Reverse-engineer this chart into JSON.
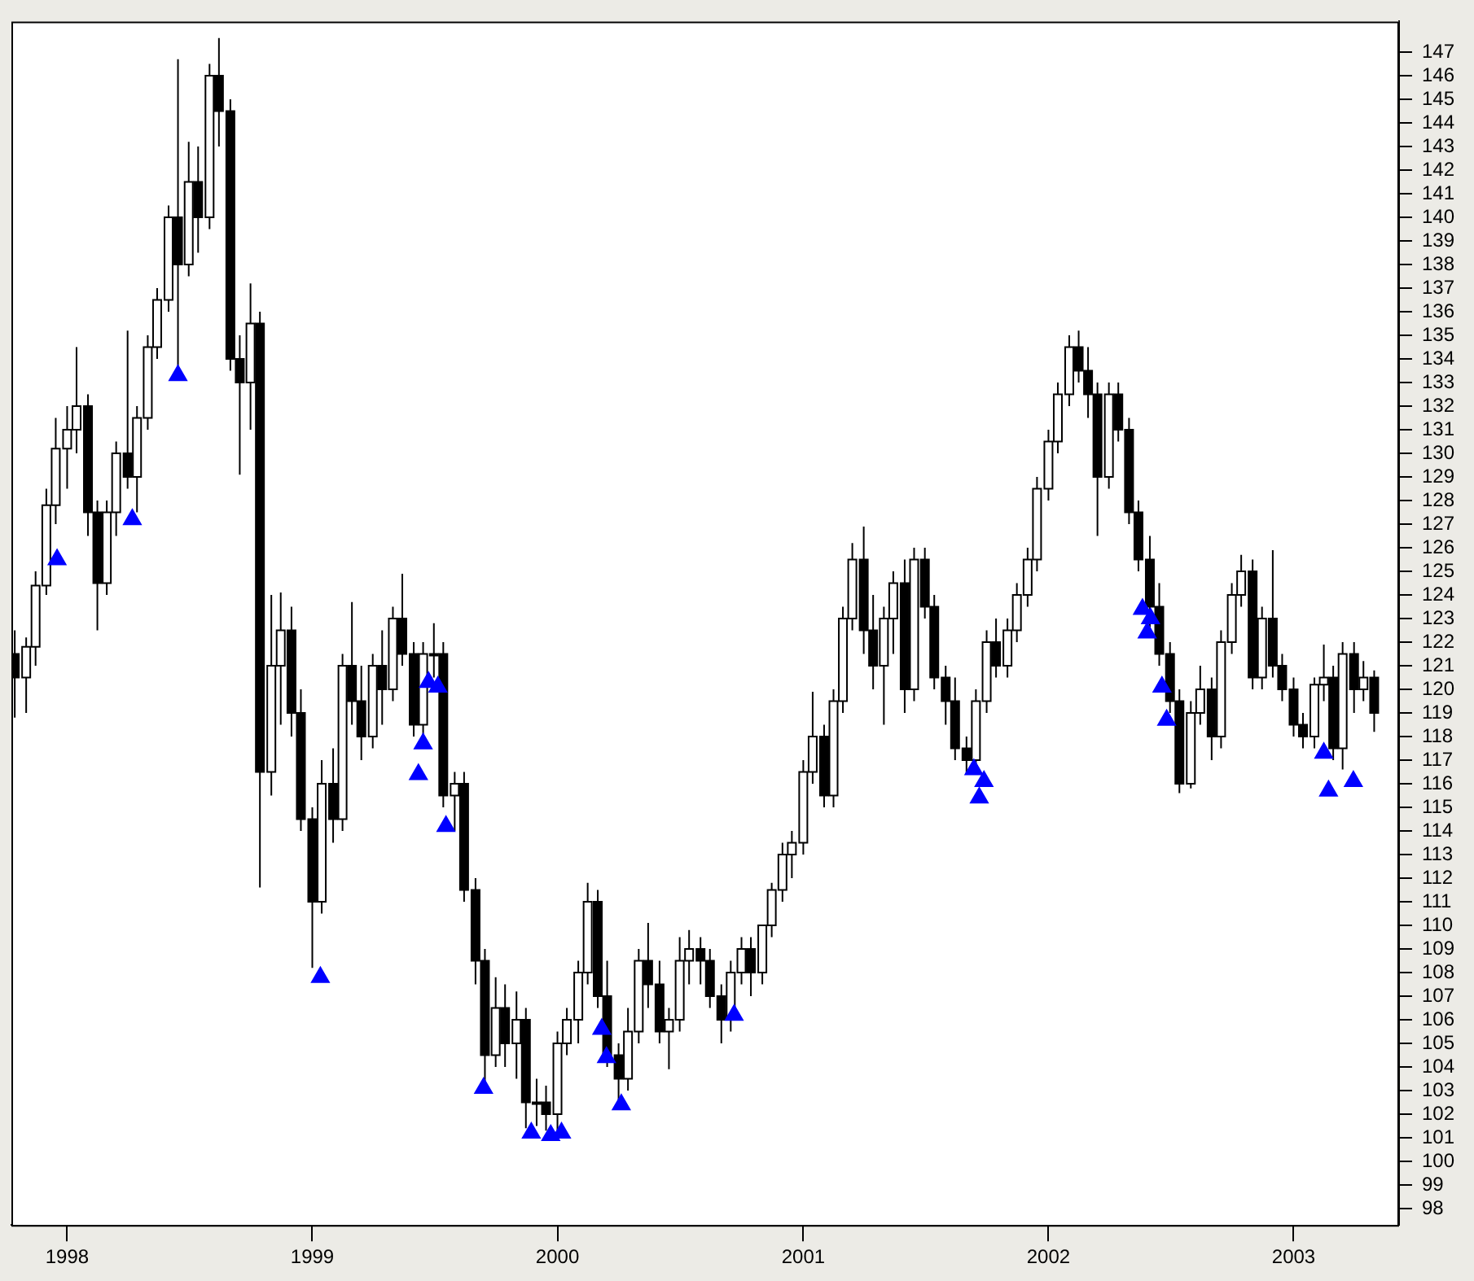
{
  "chart_data": {
    "type": "candlestick",
    "color": "#000000",
    "grid": false,
    "xlim": [
      "1997-10-10",
      "2003-06-07"
    ],
    "xticks": [
      {
        "value": "1998-01-01",
        "label": "1998"
      },
      {
        "value": "1999-01-01",
        "label": "1999"
      },
      {
        "value": "2000-01-01",
        "label": "2000"
      },
      {
        "value": "2001-01-01",
        "label": "2001"
      },
      {
        "value": "2002-01-01",
        "label": "2002"
      },
      {
        "value": "2003-01-01",
        "label": "2003"
      }
    ],
    "ylim": [
      97.3,
      148.3
    ],
    "yticks": [
      98,
      99,
      100,
      101,
      102,
      103,
      104,
      105,
      106,
      107,
      108,
      109,
      110,
      111,
      112,
      113,
      114,
      115,
      116,
      117,
      118,
      119,
      120,
      121,
      122,
      123,
      124,
      125,
      126,
      127,
      128,
      129,
      130,
      131,
      132,
      133,
      134,
      135,
      136,
      137,
      138,
      139,
      140,
      141,
      142,
      143,
      144,
      145,
      146,
      147
    ],
    "x": [
      "1997-10-15",
      "1997-11-01",
      "1997-11-15",
      "1997-12-01",
      "1997-12-15",
      "1998-01-01",
      "1998-01-15",
      "1998-02-01",
      "1998-02-15",
      "1998-03-01",
      "1998-03-15",
      "1998-04-01",
      "1998-04-15",
      "1998-05-01",
      "1998-05-15",
      "1998-06-01",
      "1998-06-15",
      "1998-07-01",
      "1998-07-15",
      "1998-08-01",
      "1998-08-15",
      "1998-09-01",
      "1998-09-15",
      "1998-10-01",
      "1998-10-15",
      "1998-11-01",
      "1998-11-15",
      "1998-12-01",
      "1998-12-15",
      "1999-01-01",
      "1999-01-15",
      "1999-02-01",
      "1999-02-15",
      "1999-03-01",
      "1999-03-15",
      "1999-04-01",
      "1999-04-15",
      "1999-05-01",
      "1999-05-15",
      "1999-06-01",
      "1999-06-15",
      "1999-07-01",
      "1999-07-15",
      "1999-08-01",
      "1999-08-15",
      "1999-09-01",
      "1999-09-15",
      "1999-10-01",
      "1999-10-15",
      "1999-11-01",
      "1999-11-15",
      "1999-12-01",
      "1999-12-15",
      "2000-01-01",
      "2000-01-15",
      "2000-02-01",
      "2000-02-15",
      "2000-03-01",
      "2000-03-15",
      "2000-04-01",
      "2000-04-15",
      "2000-05-01",
      "2000-05-15",
      "2000-06-01",
      "2000-06-15",
      "2000-07-01",
      "2000-07-15",
      "2000-08-01",
      "2000-08-15",
      "2000-09-01",
      "2000-09-15",
      "2000-10-01",
      "2000-10-15",
      "2000-11-01",
      "2000-11-15",
      "2000-12-01",
      "2000-12-15",
      "2001-01-01",
      "2001-01-15",
      "2001-02-01",
      "2001-02-15",
      "2001-03-01",
      "2001-03-15",
      "2001-04-01",
      "2001-04-15",
      "2001-05-01",
      "2001-05-15",
      "2001-06-01",
      "2001-06-15",
      "2001-07-01",
      "2001-07-15",
      "2001-08-01",
      "2001-08-15",
      "2001-09-01",
      "2001-09-15",
      "2001-10-01",
      "2001-10-15",
      "2001-11-01",
      "2001-11-15",
      "2001-12-01",
      "2001-12-15",
      "2002-01-01",
      "2002-01-15",
      "2002-02-01",
      "2002-02-15",
      "2002-03-01",
      "2002-03-15",
      "2002-04-01",
      "2002-04-15",
      "2002-05-01",
      "2002-05-15",
      "2002-06-01",
      "2002-06-15",
      "2002-07-01",
      "2002-07-15",
      "2002-08-01",
      "2002-08-15",
      "2002-09-01",
      "2002-09-15",
      "2002-10-01",
      "2002-10-15",
      "2002-11-01",
      "2002-11-15",
      "2002-12-01",
      "2002-12-15",
      "2003-01-01",
      "2003-01-15",
      "2003-02-01",
      "2003-02-15",
      "2003-03-01",
      "2003-03-15",
      "2003-04-01",
      "2003-04-15",
      "2003-05-01"
    ],
    "ohlc": [
      [
        121.5,
        122.5,
        118.8,
        120.5
      ],
      [
        120.5,
        122.2,
        119,
        121.8
      ],
      [
        121.8,
        125,
        121,
        124.4
      ],
      [
        124.4,
        128.5,
        124,
        127.8
      ],
      [
        127.8,
        131.5,
        127,
        130.2
      ],
      [
        130.2,
        132,
        128.5,
        131
      ],
      [
        131,
        134.5,
        130,
        132
      ],
      [
        132,
        132.5,
        126.5,
        127.5
      ],
      [
        127.5,
        128,
        122.5,
        124.5
      ],
      [
        124.5,
        128,
        124,
        127.5
      ],
      [
        127.5,
        130.5,
        126.5,
        130
      ],
      [
        130,
        135.2,
        128.5,
        129
      ],
      [
        129,
        132,
        127.5,
        131.5
      ],
      [
        131.5,
        135,
        131,
        134.5
      ],
      [
        134.5,
        137,
        134,
        136.5
      ],
      [
        136.5,
        140.5,
        136,
        140
      ],
      [
        140,
        146.7,
        133.7,
        138
      ],
      [
        138,
        143.2,
        137.5,
        141.5
      ],
      [
        141.5,
        143,
        138.5,
        140
      ],
      [
        140,
        146.5,
        139.5,
        146
      ],
      [
        146,
        147.6,
        143,
        144.5
      ],
      [
        144.5,
        145,
        133.5,
        134
      ],
      [
        134,
        135,
        129.1,
        133
      ],
      [
        133,
        137.2,
        131,
        135.5
      ],
      [
        135.5,
        136,
        111.6,
        116.5
      ],
      [
        116.5,
        124,
        115.5,
        121
      ],
      [
        121,
        124.1,
        118.5,
        122.5
      ],
      [
        122.5,
        123.5,
        118,
        119
      ],
      [
        119,
        120,
        114,
        114.5
      ],
      [
        114.5,
        115,
        108.2,
        111
      ],
      [
        111,
        117,
        110.5,
        116
      ],
      [
        116,
        117.5,
        113.5,
        114.5
      ],
      [
        114.5,
        121.5,
        114,
        121
      ],
      [
        121,
        123.7,
        118.5,
        119.5
      ],
      [
        119.5,
        121,
        117,
        118
      ],
      [
        118,
        121.5,
        117.5,
        121
      ],
      [
        121,
        122.5,
        118.5,
        120
      ],
      [
        120,
        123.5,
        119.5,
        123
      ],
      [
        123,
        124.9,
        121,
        121.5
      ],
      [
        121.5,
        122,
        118,
        118.5
      ],
      [
        118.5,
        122,
        118,
        121.5
      ],
      [
        121.5,
        122.8,
        120.5,
        121.5
      ],
      [
        121.5,
        122,
        115,
        115.5
      ],
      [
        115.5,
        116.5,
        114,
        116
      ],
      [
        116,
        116.5,
        111,
        111.5
      ],
      [
        111.5,
        112,
        107.5,
        108.5
      ],
      [
        108.5,
        109,
        103.3,
        104.5
      ],
      [
        104.5,
        107.8,
        104,
        106.5
      ],
      [
        106.5,
        107.5,
        104,
        105
      ],
      [
        105,
        107.2,
        103.5,
        106
      ],
      [
        106,
        106.5,
        101.4,
        102.5
      ],
      [
        102.5,
        103.5,
        101.5,
        102.5
      ],
      [
        102.5,
        103.2,
        101.3,
        102
      ],
      [
        102,
        105.5,
        101.3,
        105
      ],
      [
        105,
        106.5,
        104.5,
        106
      ],
      [
        106,
        108.5,
        105,
        108
      ],
      [
        108,
        111.8,
        107.5,
        111
      ],
      [
        111,
        111.5,
        106.5,
        107
      ],
      [
        107,
        108.5,
        104,
        104.5
      ],
      [
        104.5,
        105,
        102.5,
        103.5
      ],
      [
        103.5,
        106.5,
        103,
        105.5
      ],
      [
        105.5,
        109,
        105,
        108.5
      ],
      [
        108.5,
        110.1,
        106.5,
        107.5
      ],
      [
        107.5,
        108.5,
        105,
        105.5
      ],
      [
        105.5,
        106.5,
        103.9,
        106
      ],
      [
        106,
        109.5,
        105.5,
        108.5
      ],
      [
        108.5,
        109.8,
        107.5,
        109
      ],
      [
        109,
        109.5,
        107.5,
        108.5
      ],
      [
        108.5,
        109,
        106.5,
        107
      ],
      [
        107,
        107.5,
        105,
        106
      ],
      [
        106,
        108.5,
        105.5,
        108
      ],
      [
        108,
        109.5,
        107.5,
        109
      ],
      [
        109,
        109.5,
        107,
        108
      ],
      [
        108,
        110,
        107.5,
        110
      ],
      [
        110,
        111.8,
        109.5,
        111.5
      ],
      [
        111.5,
        113.5,
        111,
        113
      ],
      [
        113,
        114,
        112,
        113.5
      ],
      [
        113.5,
        117,
        113,
        116.5
      ],
      [
        116.5,
        119.9,
        116,
        118
      ],
      [
        118,
        118.5,
        115,
        115.5
      ],
      [
        115.5,
        120,
        115,
        119.5
      ],
      [
        119.5,
        123.5,
        119,
        123
      ],
      [
        123,
        126.2,
        122.5,
        125.5
      ],
      [
        125.5,
        126.9,
        121.5,
        122.5
      ],
      [
        122.5,
        124,
        120,
        121
      ],
      [
        121,
        123.5,
        118.5,
        123
      ],
      [
        123,
        125,
        121.5,
        124.5
      ],
      [
        124.5,
        125.5,
        119,
        120
      ],
      [
        120,
        126,
        119.5,
        125.5
      ],
      [
        125.5,
        126,
        123,
        123.5
      ],
      [
        123.5,
        124,
        120,
        120.5
      ],
      [
        120.5,
        121,
        118.5,
        119.5
      ],
      [
        119.5,
        120.5,
        117,
        117.5
      ],
      [
        117.5,
        118,
        116.4,
        117
      ],
      [
        117,
        120,
        116.8,
        119.5
      ],
      [
        119.5,
        122.5,
        119,
        122
      ],
      [
        122,
        123,
        120.5,
        121
      ],
      [
        121,
        123,
        120.5,
        122.5
      ],
      [
        122.5,
        124.5,
        122,
        124
      ],
      [
        124,
        126,
        123.5,
        125.5
      ],
      [
        125.5,
        129,
        125,
        128.5
      ],
      [
        128.5,
        131,
        128,
        130.5
      ],
      [
        130.5,
        133,
        130,
        132.5
      ],
      [
        132.5,
        135,
        132,
        134.5
      ],
      [
        134.5,
        135.2,
        133,
        133.5
      ],
      [
        133.5,
        134.5,
        131.5,
        132.5
      ],
      [
        132.5,
        133,
        126.5,
        129
      ],
      [
        129,
        133,
        128.5,
        132.5
      ],
      [
        132.5,
        133,
        130.5,
        131
      ],
      [
        131,
        131.5,
        127,
        127.5
      ],
      [
        127.5,
        128,
        125,
        125.5
      ],
      [
        125.5,
        126.5,
        122.5,
        123.5
      ],
      [
        123.5,
        124.5,
        121,
        121.5
      ],
      [
        121.5,
        122,
        119,
        119.5
      ],
      [
        119.5,
        120,
        115.6,
        116
      ],
      [
        116,
        119.5,
        115.8,
        119
      ],
      [
        119,
        121,
        118.5,
        120
      ],
      [
        120,
        120.5,
        117,
        118
      ],
      [
        118,
        122.5,
        117.5,
        122
      ],
      [
        122,
        124.5,
        121.5,
        124
      ],
      [
        124,
        125.7,
        123.5,
        125
      ],
      [
        125,
        125.5,
        120,
        120.5
      ],
      [
        120.5,
        123.5,
        120,
        123
      ],
      [
        123,
        125.9,
        120.5,
        121
      ],
      [
        121,
        121.5,
        119.5,
        120
      ],
      [
        120,
        120.5,
        118,
        118.5
      ],
      [
        118.5,
        119,
        117.5,
        118
      ],
      [
        118,
        120.5,
        117.5,
        120.2
      ],
      [
        120.2,
        121.9,
        119.5,
        120.5
      ],
      [
        120.5,
        121,
        117,
        117.5
      ],
      [
        117.5,
        122,
        116.6,
        121.5
      ],
      [
        121.5,
        122,
        119,
        120
      ],
      [
        120,
        121.2,
        119.5,
        120.5
      ],
      [
        120.5,
        120.8,
        118.2,
        119
      ]
    ],
    "series": [
      {
        "type": "scatter",
        "color": "#0000ff",
        "marker": "triangle",
        "x": [
          "1997-12-17",
          "1998-04-08",
          "1998-06-15",
          "1999-01-13",
          "1999-06-08",
          "1999-06-15",
          "1999-06-23",
          "1999-07-07",
          "1999-07-19",
          "1999-09-13",
          "1999-11-23",
          "1999-12-22",
          "2000-01-07",
          "2000-03-07",
          "2000-03-14",
          "2000-04-05",
          "2000-09-20",
          "2001-09-12",
          "2001-09-20",
          "2001-09-27",
          "2002-05-21",
          "2002-05-28",
          "2002-06-02",
          "2002-06-19",
          "2002-06-26",
          "2003-02-15",
          "2003-02-22",
          "2003-03-31"
        ],
        "values": [
          125.5,
          127.2,
          133.3,
          107.8,
          116.4,
          117.7,
          120.3,
          120.1,
          114.2,
          103.1,
          101.2,
          101.1,
          101.2,
          105.6,
          104.4,
          102.4,
          106.2,
          116.6,
          115.4,
          116.1,
          123.4,
          122.4,
          123,
          120.1,
          118.7,
          117.3,
          115.7,
          116.1
        ]
      }
    ]
  }
}
